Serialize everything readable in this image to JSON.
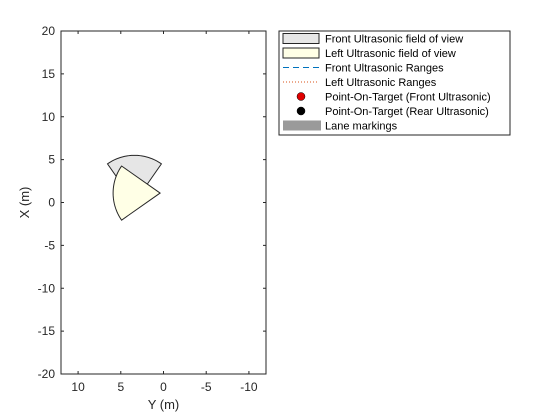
{
  "chart_data": {
    "type": "scatter",
    "title": "",
    "xlabel": "Y (m)",
    "ylabel": "X (m)",
    "xlim": [
      -12,
      12
    ],
    "x_reversed": true,
    "ylim": [
      -20,
      20
    ],
    "xticks": [
      "10",
      "5",
      "0",
      "-5",
      "-10"
    ],
    "xtick_values": [
      10,
      5,
      0,
      -5,
      -10
    ],
    "yticks": [
      "20",
      "15",
      "10",
      "5",
      "0",
      "-5",
      "-10",
      "-15",
      "-20"
    ],
    "ytick_values": [
      20,
      15,
      10,
      5,
      0,
      -5,
      -10,
      -15,
      -20
    ],
    "grid": false,
    "legend_placement": "outside-top-right",
    "legend": [
      {
        "label": "Front Ultrasonic field of view",
        "swatch": "patch",
        "color": "#e6e6e6"
      },
      {
        "label": "Left Ultrasonic field of view",
        "swatch": "patch",
        "color": "#ffffe6"
      },
      {
        "label": "Front Ultrasonic Ranges",
        "swatch": "dashed-line",
        "color": "#0072bd"
      },
      {
        "label": "Left Ultrasonic Ranges",
        "swatch": "dotted-line",
        "color": "#d95319"
      },
      {
        "label": "Point-On-Target (Front Ultrasonic)",
        "swatch": "marker",
        "color": "#e00000"
      },
      {
        "label": "Point-On-Target (Rear Ultrasonic)",
        "swatch": "marker",
        "color": "#000000"
      },
      {
        "label": "Lane markings",
        "swatch": "thick-patch",
        "color": "#9a9a9a"
      }
    ],
    "fields_of_view": [
      {
        "name": "Front Ultrasonic field of view",
        "apex": [
          3.4,
          0.0
        ],
        "range_m": 5.5,
        "center_deg": 0,
        "half_angle_deg": 35,
        "fill": "#e6e6e6"
      },
      {
        "name": "Left Ultrasonic field of view",
        "apex": [
          0.4,
          1.1
        ],
        "range_m": 5.5,
        "center_deg": 90,
        "half_angle_deg": 35,
        "fill": "#ffffe6"
      }
    ]
  }
}
